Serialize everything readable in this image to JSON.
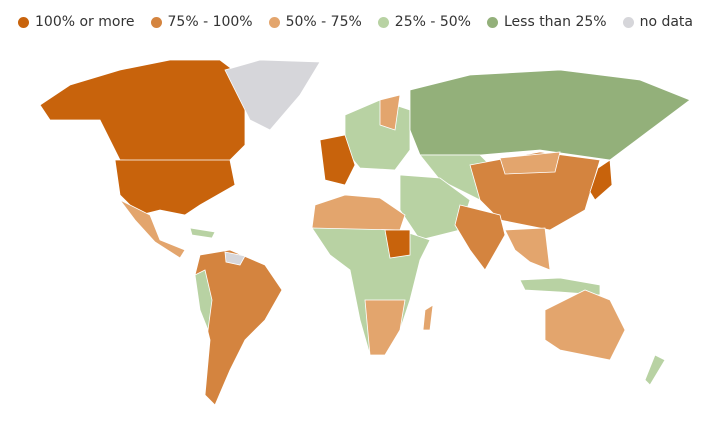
{
  "legend": [
    {
      "label": "100% or more",
      "color": "#c8630c"
    },
    {
      "label": "75% - 100%",
      "color": "#d4843f"
    },
    {
      "label": "50% - 75%",
      "color": "#e3a56d"
    },
    {
      "label": "25% - 50%",
      "color": "#b8d2a3"
    },
    {
      "label": "Less than 25%",
      "color": "#93b07a"
    },
    {
      "label": "no data",
      "color": "#d6d6da"
    }
  ]
}
